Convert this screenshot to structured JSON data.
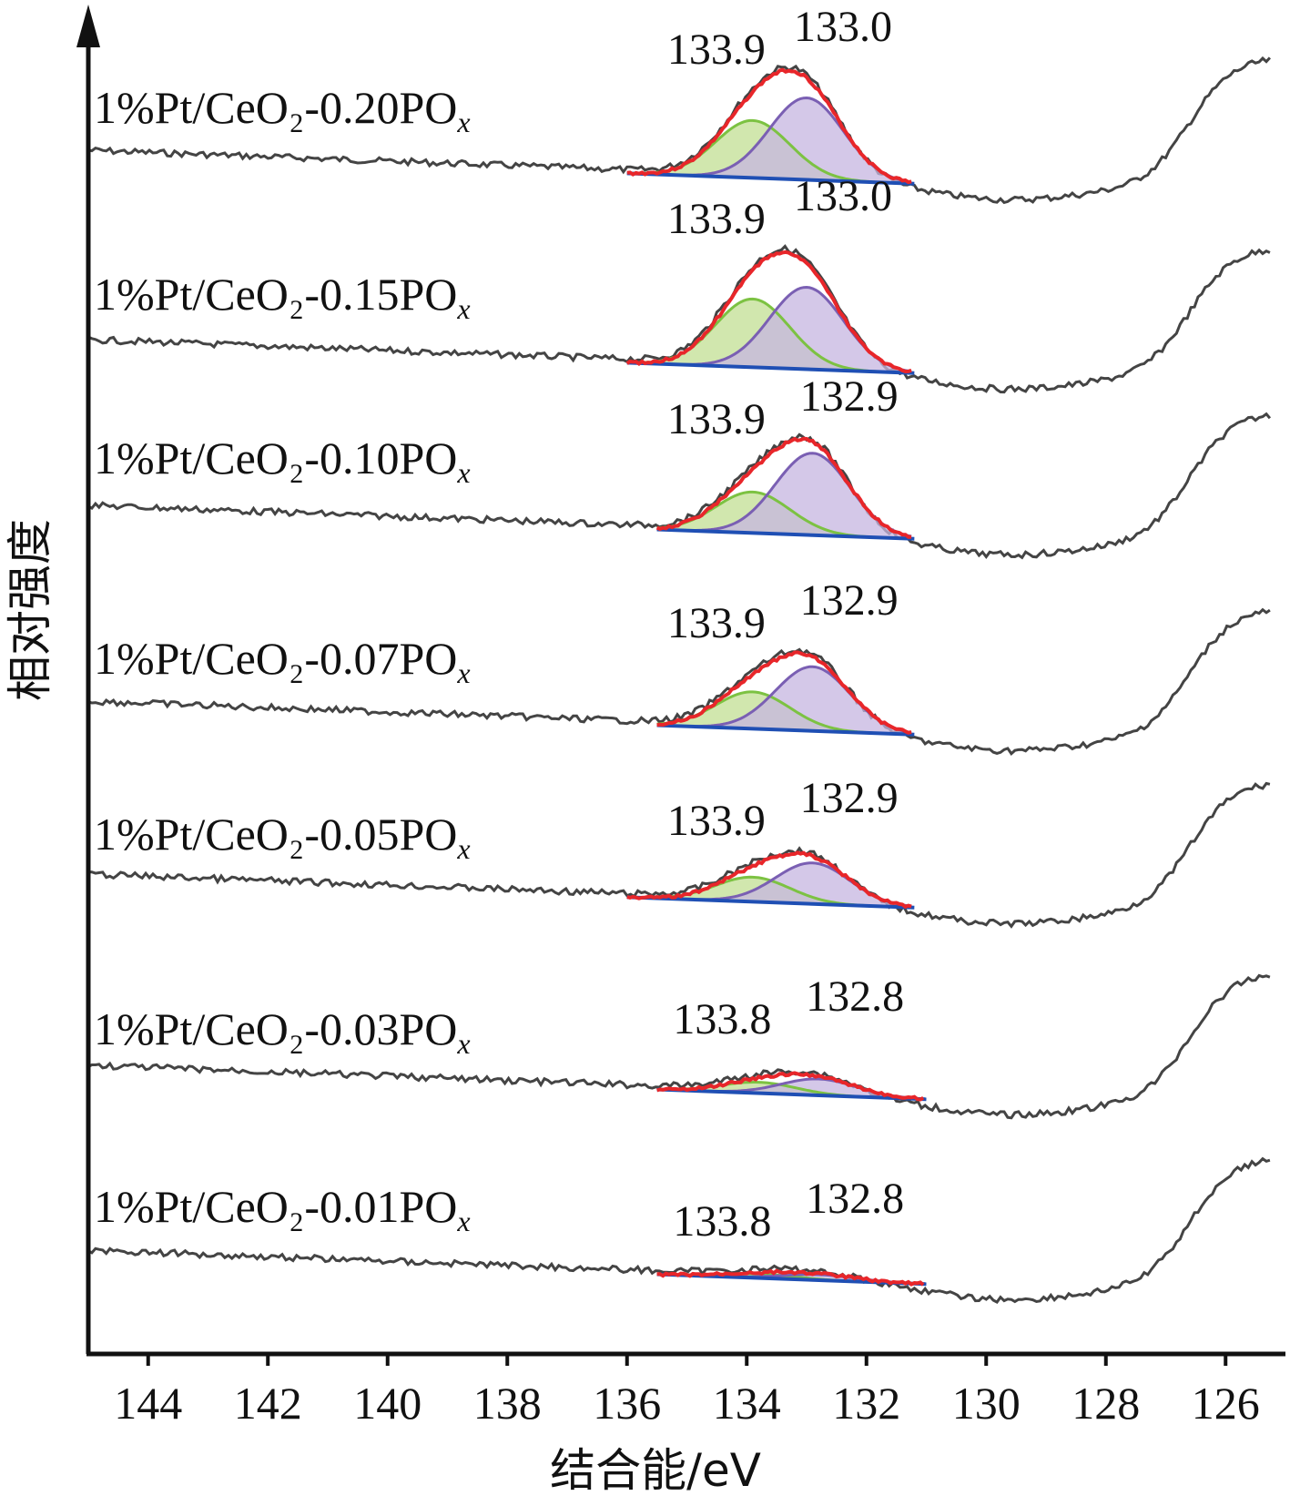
{
  "chart_data": {
    "type": "line",
    "title": "",
    "xlabel": "结合能/eV",
    "ylabel": "相对强度",
    "xlim": [
      145,
      125
    ],
    "x_reversed": true,
    "xticks": [
      144,
      142,
      140,
      138,
      136,
      134,
      132,
      130,
      128,
      126
    ],
    "grid": false,
    "legend": "none",
    "colors": {
      "raw": "#444444",
      "envelope": "#e8262a",
      "peak_high": "#7cc242",
      "peak_high_fill": "#c9e3a0",
      "peak_low": "#7a5fb3",
      "peak_low_fill": "#c5b6e0",
      "background": "#1f4fb4",
      "overlap_fill": "#4fae84"
    },
    "series": [
      {
        "label": "1%Pt/CeO₂-0.20PO",
        "sub": "x",
        "peaks": [
          {
            "position": 133.9,
            "label": "133.9"
          },
          {
            "position": 133.0,
            "label": "133.0"
          }
        ],
        "amp_high": 0.42,
        "amp_low": 0.6,
        "fit_range": [
          136.0,
          131.2
        ]
      },
      {
        "label": "1%Pt/CeO₂-0.15PO",
        "sub": "x",
        "peaks": [
          {
            "position": 133.9,
            "label": "133.9"
          },
          {
            "position": 133.0,
            "label": "133.0"
          }
        ],
        "amp_high": 0.5,
        "amp_low": 0.6,
        "fit_range": [
          136.0,
          131.2
        ]
      },
      {
        "label": "1%Pt/CeO₂-0.10PO",
        "sub": "x",
        "peaks": [
          {
            "position": 133.9,
            "label": "133.9"
          },
          {
            "position": 132.9,
            "label": "132.9"
          }
        ],
        "amp_high": 0.3,
        "amp_low": 0.6,
        "fit_range": [
          135.5,
          131.2
        ]
      },
      {
        "label": "1%Pt/CeO₂-0.07PO",
        "sub": "x",
        "peaks": [
          {
            "position": 133.9,
            "label": "133.9"
          },
          {
            "position": 132.9,
            "label": "132.9"
          }
        ],
        "amp_high": 0.27,
        "amp_low": 0.47,
        "fit_range": [
          135.5,
          131.2
        ]
      },
      {
        "label": "1%Pt/CeO₂-0.05PO",
        "sub": "x",
        "peaks": [
          {
            "position": 133.9,
            "label": "133.9"
          },
          {
            "position": 132.9,
            "label": "132.9"
          }
        ],
        "amp_high": 0.18,
        "amp_low": 0.3,
        "fit_range": [
          136.0,
          131.2
        ]
      },
      {
        "label": "1%Pt/CeO₂-0.03PO",
        "sub": "x",
        "peaks": [
          {
            "position": 133.8,
            "label": "133.8"
          },
          {
            "position": 132.8,
            "label": "132.8"
          }
        ],
        "amp_high": 0.08,
        "amp_low": 0.12,
        "fit_range": [
          135.5,
          131.0
        ]
      },
      {
        "label": "1%Pt/CeO₂-0.01PO",
        "sub": "x",
        "peaks": [
          {
            "position": 133.8,
            "label": "133.8"
          },
          {
            "position": 132.8,
            "label": "132.8"
          }
        ],
        "amp_high": 0.03,
        "amp_low": 0.04,
        "fit_range": [
          135.5,
          131.0
        ]
      }
    ]
  }
}
